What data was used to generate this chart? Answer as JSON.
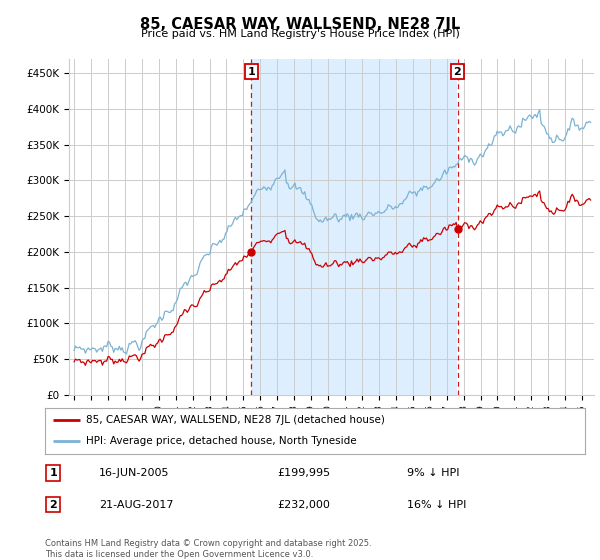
{
  "title": "85, CAESAR WAY, WALLSEND, NE28 7JL",
  "subtitle": "Price paid vs. HM Land Registry's House Price Index (HPI)",
  "legend_line1": "85, CAESAR WAY, WALLSEND, NE28 7JL (detached house)",
  "legend_line2": "HPI: Average price, detached house, North Tyneside",
  "sale1_date": "16-JUN-2005",
  "sale1_price": 199995,
  "sale1_pct": "9% ↓ HPI",
  "sale2_date": "21-AUG-2017",
  "sale2_price": 232000,
  "sale2_pct": "16% ↓ HPI",
  "sale1_x": 2005.46,
  "sale2_x": 2017.64,
  "hpi_color": "#7ab3d4",
  "price_color": "#cc0000",
  "vline_color": "#cc0000",
  "shade_color": "#ddeeff",
  "background_color": "#ffffff",
  "plot_bg_color": "#ffffff",
  "grid_color": "#cccccc",
  "yticks": [
    0,
    50000,
    100000,
    150000,
    200000,
    250000,
    300000,
    350000,
    400000,
    450000
  ],
  "ytick_labels": [
    "£0",
    "£50K",
    "£100K",
    "£150K",
    "£200K",
    "£250K",
    "£300K",
    "£350K",
    "£400K",
    "£450K"
  ],
  "xmin": 1994.7,
  "xmax": 2025.7,
  "ymin": 0,
  "ymax": 470000,
  "footer": "Contains HM Land Registry data © Crown copyright and database right 2025.\nThis data is licensed under the Open Government Licence v3.0."
}
